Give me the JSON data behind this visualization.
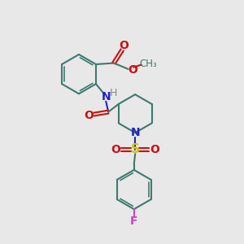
{
  "bg_color": "#e8e8e8",
  "bond_color": "#3d7a6e",
  "bond_width": 1.5,
  "N_color": "#2222cc",
  "O_color": "#cc1111",
  "S_color": "#cccc00",
  "F_color": "#cc44cc",
  "H_color": "#888888",
  "text_fontsize": 10,
  "figsize": [
    3.0,
    3.0
  ],
  "dpi": 100,
  "xlim": [
    0,
    10
  ],
  "ylim": [
    0,
    10
  ]
}
